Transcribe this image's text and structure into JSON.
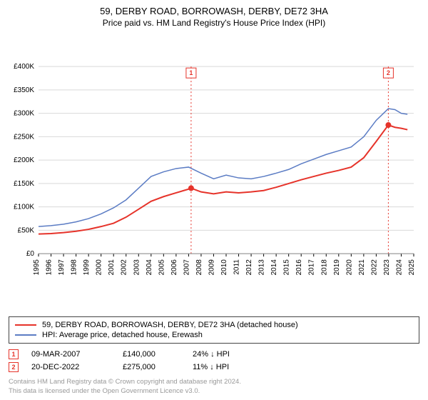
{
  "title": "59, DERBY ROAD, BORROWASH, DERBY, DE72 3HA",
  "subtitle": "Price paid vs. HM Land Registry's House Price Index (HPI)",
  "chart": {
    "type": "line",
    "background_color": "#ffffff",
    "grid_color": "#d9d9d9",
    "axis_fontsize": 10,
    "ylim": [
      0,
      400000
    ],
    "ytick_step": 50000,
    "ytick_labels": [
      "£0",
      "£50K",
      "£100K",
      "£150K",
      "£200K",
      "£250K",
      "£300K",
      "£350K",
      "£400K"
    ],
    "xlim": [
      1995,
      2025
    ],
    "xtick_step": 1,
    "xtick_labels": [
      "1995",
      "1996",
      "1997",
      "1998",
      "1999",
      "2000",
      "2001",
      "2002",
      "2003",
      "2004",
      "2005",
      "2006",
      "2007",
      "2008",
      "2009",
      "2010",
      "2011",
      "2012",
      "2013",
      "2014",
      "2015",
      "2016",
      "2017",
      "2018",
      "2019",
      "2020",
      "2021",
      "2022",
      "2023",
      "2024",
      "2025"
    ],
    "series": [
      {
        "name": "price_paid",
        "label": "59, DERBY ROAD, BORROWASH, DERBY, DE72 3HA (detached house)",
        "color": "#e6332a",
        "line_width": 2,
        "x": [
          1995,
          1996,
          1997,
          1998,
          1999,
          2000,
          2001,
          2002,
          2003,
          2004,
          2005,
          2006,
          2007,
          2007.2,
          2008,
          2009,
          2010,
          2011,
          2012,
          2013,
          2014,
          2015,
          2016,
          2017,
          2018,
          2019,
          2020,
          2021,
          2022,
          2022.97,
          2023.5,
          2024,
          2024.5
        ],
        "y": [
          42000,
          43000,
          45000,
          48000,
          52000,
          58000,
          65000,
          78000,
          95000,
          112000,
          122000,
          130000,
          138000,
          140000,
          132000,
          128000,
          132000,
          130000,
          132000,
          135000,
          142000,
          150000,
          158000,
          165000,
          172000,
          178000,
          185000,
          205000,
          240000,
          275000,
          270000,
          268000,
          265000
        ]
      },
      {
        "name": "hpi",
        "label": "HPI: Average price, detached house, Erewash",
        "color": "#5b7cc4",
        "line_width": 1.5,
        "x": [
          1995,
          1996,
          1997,
          1998,
          1999,
          2000,
          2001,
          2002,
          2003,
          2004,
          2005,
          2006,
          2007,
          2008,
          2009,
          2010,
          2011,
          2012,
          2013,
          2014,
          2015,
          2016,
          2017,
          2018,
          2019,
          2020,
          2021,
          2022,
          2022.97,
          2023.5,
          2024,
          2024.5
        ],
        "y": [
          58000,
          60000,
          63000,
          68000,
          75000,
          85000,
          98000,
          115000,
          140000,
          165000,
          175000,
          182000,
          185000,
          172000,
          160000,
          168000,
          162000,
          160000,
          165000,
          172000,
          180000,
          192000,
          202000,
          212000,
          220000,
          228000,
          250000,
          285000,
          310000,
          308000,
          300000,
          298000
        ]
      }
    ],
    "markers": [
      {
        "idx": 1,
        "x": 2007.2,
        "y": 140000,
        "color": "#e6332a",
        "badge_border": "#e6332a",
        "line_color": "#e6332a"
      },
      {
        "idx": 2,
        "x": 2022.97,
        "y": 275000,
        "color": "#e6332a",
        "badge_border": "#e6332a",
        "line_color": "#e6332a"
      }
    ]
  },
  "legend": {
    "items": [
      {
        "color": "#e6332a",
        "label": "59, DERBY ROAD, BORROWASH, DERBY, DE72 3HA (detached house)"
      },
      {
        "color": "#5b7cc4",
        "label": "HPI: Average price, detached house, Erewash"
      }
    ]
  },
  "sales": [
    {
      "idx": "1",
      "date": "09-MAR-2007",
      "price": "£140,000",
      "delta": "24% ↓ HPI"
    },
    {
      "idx": "2",
      "date": "20-DEC-2022",
      "price": "£275,000",
      "delta": "11% ↓ HPI"
    }
  ],
  "footer_line1": "Contains HM Land Registry data © Crown copyright and database right 2024.",
  "footer_line2": "This data is licensed under the Open Government Licence v3.0."
}
